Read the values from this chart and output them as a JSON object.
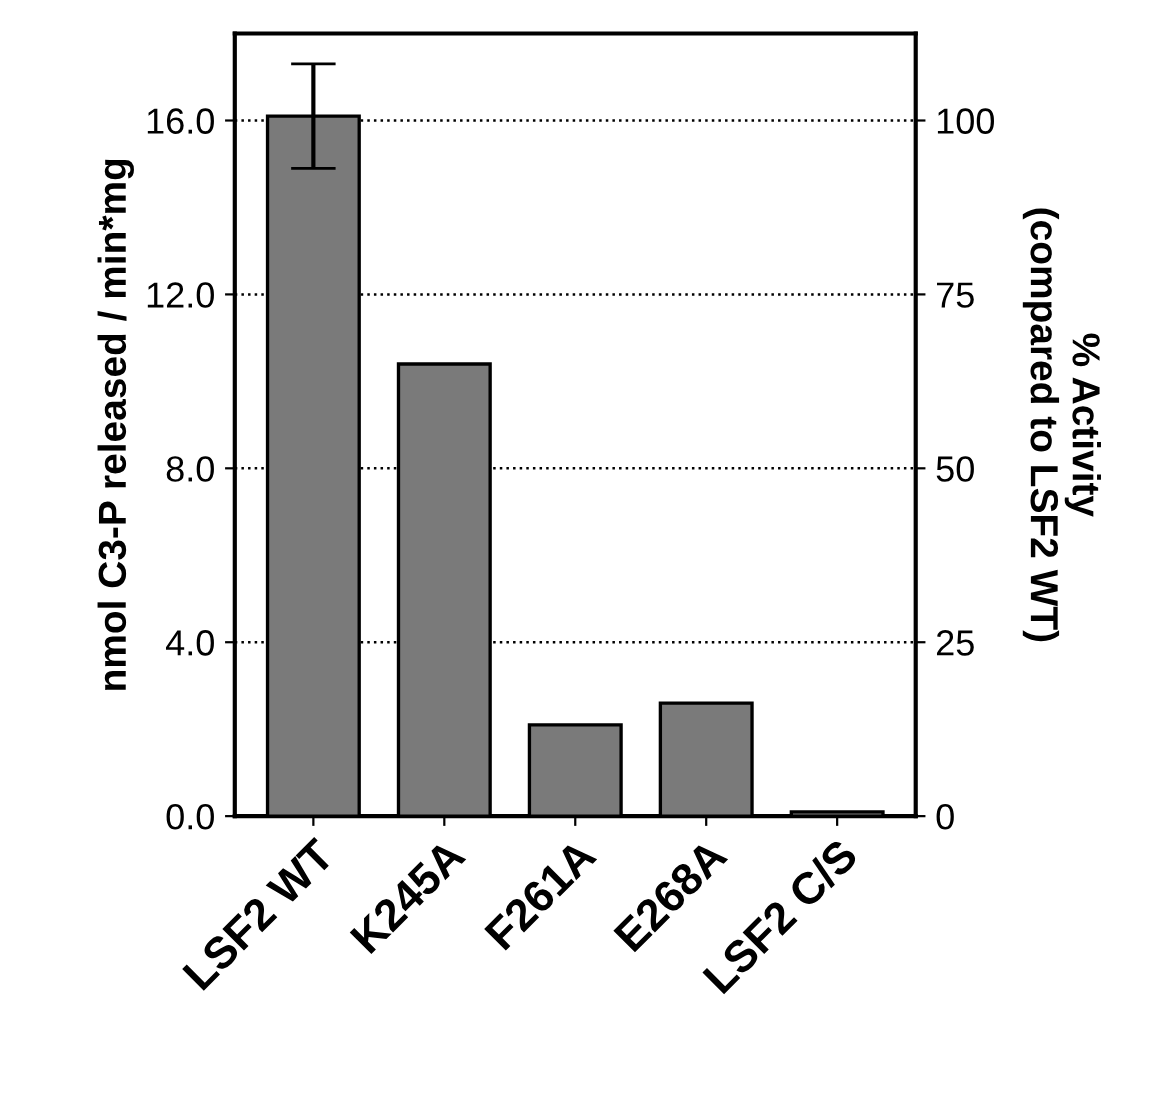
{
  "chart_data": {
    "type": "bar",
    "ylabel": "nmol C3-P released / min*mg",
    "y2label": "% Activity\n(compared to LSF2 WT)",
    "categories": [
      "LSF2 WT",
      "K245A",
      "F261A",
      "E268A",
      "LSF2 C/S"
    ],
    "values": [
      16.1,
      10.4,
      2.1,
      2.6,
      0.1
    ],
    "errors": [
      1.2,
      null,
      null,
      null,
      null
    ],
    "color": "#7a7a7a",
    "ylim": [
      0,
      18
    ],
    "yticks": [
      {
        "value": 0,
        "label": "0.0"
      },
      {
        "value": 4,
        "label": "4.0"
      },
      {
        "value": 8,
        "label": "8.0"
      },
      {
        "value": 12,
        "label": "12.0"
      },
      {
        "value": 16,
        "label": "16.0"
      }
    ],
    "y2lim": [
      0,
      112.5
    ],
    "y2ticks": [
      0,
      25,
      50,
      75,
      100
    ],
    "grid": "y"
  }
}
